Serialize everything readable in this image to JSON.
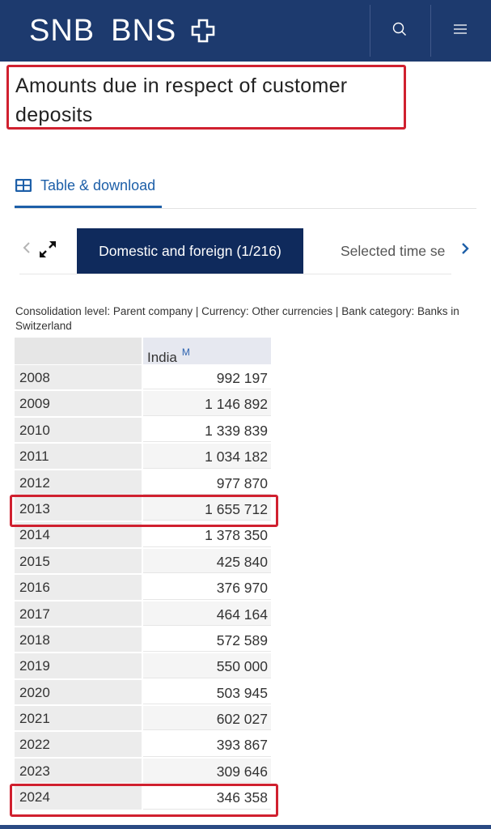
{
  "header": {
    "logo_left": "SNB",
    "logo_right": "BNS",
    "logo_icon": "swiss-cross-icon",
    "search_icon": "search-icon",
    "menu_icon": "menu-icon"
  },
  "page_title": "Amounts due in respect of customer deposits",
  "tab": {
    "icon": "table-icon",
    "label": "Table & download"
  },
  "selector": {
    "prev_icon": "chevron-left-icon",
    "expand_icon": "expand-icon",
    "active_label": "Domestic and foreign (1/216)",
    "next_label": "Selected time se",
    "next_icon": "chevron-right-icon"
  },
  "meta": "Consolidation level: Parent company | Currency: Other currencies | Bank category: Banks in Switzerland",
  "table": {
    "column_header": "India",
    "column_marker": "M",
    "rows": [
      {
        "year": "2008",
        "value": "992 197"
      },
      {
        "year": "2009",
        "value": "1 146 892"
      },
      {
        "year": "2010",
        "value": "1 339 839"
      },
      {
        "year": "2011",
        "value": "1 034 182"
      },
      {
        "year": "2012",
        "value": "977 870"
      },
      {
        "year": "2013",
        "value": "1 655 712"
      },
      {
        "year": "2014",
        "value": "1 378 350"
      },
      {
        "year": "2015",
        "value": "425 840"
      },
      {
        "year": "2016",
        "value": "376 970"
      },
      {
        "year": "2017",
        "value": "464 164"
      },
      {
        "year": "2018",
        "value": "572 589"
      },
      {
        "year": "2019",
        "value": "550 000"
      },
      {
        "year": "2020",
        "value": "503 945"
      },
      {
        "year": "2021",
        "value": "602 027"
      },
      {
        "year": "2022",
        "value": "393 867"
      },
      {
        "year": "2023",
        "value": "309 646"
      },
      {
        "year": "2024",
        "value": "346 358"
      }
    ]
  },
  "colors": {
    "header_bg": "#1d3a6e",
    "active_tab_bg": "#0f2a5c",
    "link_blue": "#1d5fa8",
    "highlight_red": "#d0202f"
  }
}
